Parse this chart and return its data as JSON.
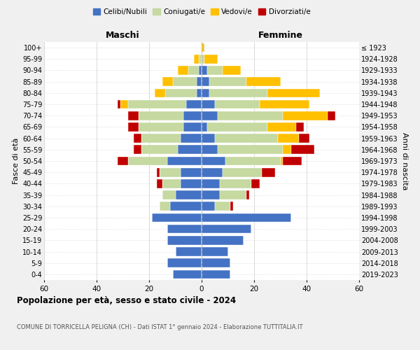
{
  "age_groups": [
    "0-4",
    "5-9",
    "10-14",
    "15-19",
    "20-24",
    "25-29",
    "30-34",
    "35-39",
    "40-44",
    "45-49",
    "50-54",
    "55-59",
    "60-64",
    "65-69",
    "70-74",
    "75-79",
    "80-84",
    "85-89",
    "90-94",
    "95-99",
    "100+"
  ],
  "birth_years": [
    "2019-2023",
    "2014-2018",
    "2009-2013",
    "2004-2008",
    "1999-2003",
    "1994-1998",
    "1989-1993",
    "1984-1988",
    "1979-1983",
    "1974-1978",
    "1969-1973",
    "1964-1968",
    "1959-1963",
    "1954-1958",
    "1949-1953",
    "1944-1948",
    "1939-1943",
    "1934-1938",
    "1929-1933",
    "1924-1928",
    "≤ 1923"
  ],
  "maschi_celibi": [
    11,
    13,
    10,
    13,
    13,
    19,
    12,
    10,
    8,
    8,
    13,
    9,
    8,
    7,
    7,
    6,
    2,
    2,
    1,
    0,
    0
  ],
  "maschi_coniugati": [
    0,
    0,
    0,
    0,
    0,
    0,
    4,
    5,
    7,
    8,
    15,
    14,
    15,
    17,
    17,
    22,
    12,
    9,
    4,
    1,
    0
  ],
  "maschi_vedovi": [
    0,
    0,
    0,
    0,
    0,
    0,
    0,
    0,
    0,
    0,
    0,
    0,
    0,
    0,
    0,
    3,
    4,
    4,
    4,
    2,
    0
  ],
  "maschi_divorziati": [
    0,
    0,
    0,
    0,
    0,
    0,
    0,
    0,
    2,
    1,
    4,
    3,
    3,
    4,
    4,
    1,
    0,
    0,
    0,
    0,
    0
  ],
  "femmine_celibi": [
    11,
    11,
    10,
    16,
    19,
    34,
    5,
    7,
    7,
    8,
    9,
    6,
    5,
    2,
    6,
    5,
    3,
    3,
    2,
    0,
    0
  ],
  "femmine_coniugati": [
    0,
    0,
    0,
    0,
    0,
    0,
    6,
    10,
    12,
    15,
    21,
    25,
    24,
    23,
    25,
    17,
    22,
    14,
    6,
    1,
    0
  ],
  "femmine_vedovi": [
    0,
    0,
    0,
    0,
    0,
    0,
    0,
    0,
    0,
    0,
    1,
    3,
    8,
    11,
    17,
    19,
    20,
    13,
    7,
    5,
    1
  ],
  "femmine_divorziati": [
    0,
    0,
    0,
    0,
    0,
    0,
    1,
    1,
    3,
    5,
    7,
    9,
    4,
    3,
    3,
    0,
    0,
    0,
    0,
    0,
    0
  ],
  "color_celibi": "#4472c4",
  "color_coniugati": "#c5d9a0",
  "color_vedovi": "#ffc000",
  "color_divorziati": "#c00000",
  "title": "Popolazione per età, sesso e stato civile - 2024",
  "subtitle": "COMUNE DI TORRICELLA PELIGNA (CH) - Dati ISTAT 1° gennaio 2024 - Elaborazione TUTTITALIA.IT",
  "xlabel_left": "Maschi",
  "xlabel_right": "Femmine",
  "ylabel_left": "Fasce di età",
  "ylabel_right": "Anni di nascita",
  "xlim": 60,
  "bg_color": "#f0f0f0",
  "plot_bg": "#ffffff",
  "legend_labels": [
    "Celibi/Nubili",
    "Coniugati/e",
    "Vedovi/e",
    "Divorziati/e"
  ]
}
